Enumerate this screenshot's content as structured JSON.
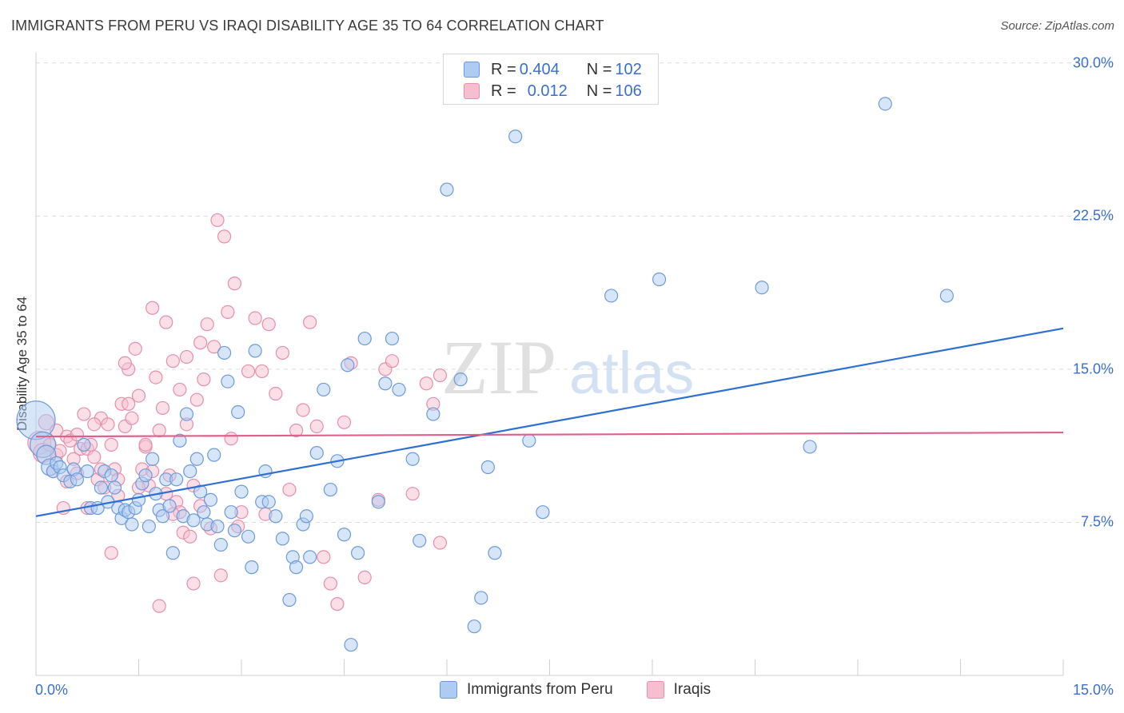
{
  "title": "IMMIGRANTS FROM PERU VS IRAQI DISABILITY AGE 35 TO 64 CORRELATION CHART",
  "source": "Source: ZipAtlas.com",
  "watermark": {
    "zip": "ZIP",
    "atlas": "atlas"
  },
  "colors": {
    "blue_fill": "#aecbf2",
    "blue_stroke": "#6f9ad9",
    "blue_line": "#2f6fd1",
    "pink_fill": "#f5bfd0",
    "pink_stroke": "#e58fac",
    "pink_line": "#e0608b",
    "grid": "#dcdcdc",
    "axis_label": "#3a6fcf"
  },
  "legend": {
    "rows": [
      {
        "r_label": "R = ",
        "r_value": "0.404",
        "n_label": "N = ",
        "n_value": "102"
      },
      {
        "r_label": "R = ",
        "r_value": "0.012",
        "n_label": "N = ",
        "n_value": "106"
      }
    ]
  },
  "bottom_legend": [
    "Immigrants from Peru",
    "Iraqis"
  ],
  "chart_data": {
    "type": "scatter",
    "title": "IMMIGRANTS FROM PERU VS IRAQI DISABILITY AGE 35 TO 64 CORRELATION CHART",
    "ylabel": "Disability Age 35 to 64",
    "xlabel": "",
    "xlim": [
      0,
      15
    ],
    "ylim": [
      0,
      30.5
    ],
    "x_tick_labels": [
      "0.0%",
      "15.0%"
    ],
    "y_ticks": [
      7.5,
      15.0,
      22.5,
      30.0
    ],
    "y_tick_labels": [
      "7.5%",
      "15.0%",
      "22.5%",
      "30.0%"
    ],
    "grid": true,
    "legend_position": "top-center",
    "series": [
      {
        "name": "Immigrants from Peru",
        "color": "#aecbf2",
        "trend": {
          "x": [
            0,
            15
          ],
          "y": [
            7.8,
            17.0
          ]
        },
        "points": [
          [
            0.0,
            12.5,
            3
          ],
          [
            0.1,
            11.3,
            2
          ],
          [
            0.15,
            10.8,
            1.5
          ],
          [
            0.2,
            10.2,
            1.3
          ],
          [
            0.25,
            10.0,
            1
          ],
          [
            0.3,
            10.4,
            1
          ],
          [
            0.35,
            10.2,
            1
          ],
          [
            0.4,
            9.8,
            1
          ],
          [
            0.5,
            9.5,
            1
          ],
          [
            0.55,
            10.1,
            1
          ],
          [
            0.6,
            9.6,
            1
          ],
          [
            0.7,
            11.3,
            1
          ],
          [
            0.75,
            10.0,
            1
          ],
          [
            0.8,
            8.2,
            1
          ],
          [
            0.9,
            8.2,
            1
          ],
          [
            0.95,
            9.2,
            1
          ],
          [
            1.0,
            10.0,
            1
          ],
          [
            1.05,
            8.5,
            1
          ],
          [
            1.1,
            9.8,
            1
          ],
          [
            1.15,
            9.2,
            1
          ],
          [
            1.2,
            8.2,
            1
          ],
          [
            1.25,
            7.7,
            1
          ],
          [
            1.3,
            8.1,
            1
          ],
          [
            1.35,
            8.0,
            1
          ],
          [
            1.4,
            7.4,
            1
          ],
          [
            1.45,
            8.2,
            1
          ],
          [
            1.5,
            8.6,
            1
          ],
          [
            1.55,
            9.4,
            1
          ],
          [
            1.6,
            9.8,
            1
          ],
          [
            1.65,
            7.3,
            1
          ],
          [
            1.7,
            10.6,
            1
          ],
          [
            1.75,
            8.9,
            1
          ],
          [
            1.8,
            8.1,
            1
          ],
          [
            1.85,
            7.8,
            1
          ],
          [
            1.9,
            9.6,
            1
          ],
          [
            1.95,
            8.3,
            1
          ],
          [
            2.0,
            6.0,
            1
          ],
          [
            2.05,
            9.6,
            1
          ],
          [
            2.1,
            11.5,
            1
          ],
          [
            2.15,
            7.8,
            1
          ],
          [
            2.2,
            12.8,
            1
          ],
          [
            2.25,
            10.0,
            1
          ],
          [
            2.3,
            7.6,
            1
          ],
          [
            2.35,
            10.6,
            1
          ],
          [
            2.4,
            9.0,
            1
          ],
          [
            2.45,
            8.0,
            1
          ],
          [
            2.5,
            7.4,
            1
          ],
          [
            2.55,
            8.6,
            1
          ],
          [
            2.6,
            10.8,
            1
          ],
          [
            2.65,
            7.3,
            1
          ],
          [
            2.7,
            6.4,
            1
          ],
          [
            2.75,
            15.8,
            1
          ],
          [
            2.8,
            14.4,
            1
          ],
          [
            2.85,
            8.0,
            1
          ],
          [
            2.9,
            7.1,
            1
          ],
          [
            2.95,
            12.9,
            1
          ],
          [
            3.0,
            9.0,
            1
          ],
          [
            3.1,
            6.8,
            1
          ],
          [
            3.15,
            5.3,
            1
          ],
          [
            3.2,
            15.9,
            1
          ],
          [
            3.3,
            8.5,
            1
          ],
          [
            3.35,
            10.0,
            1
          ],
          [
            3.4,
            8.5,
            1
          ],
          [
            3.5,
            7.8,
            1
          ],
          [
            3.6,
            6.7,
            1
          ],
          [
            3.7,
            3.7,
            1
          ],
          [
            3.75,
            5.8,
            1
          ],
          [
            3.8,
            5.3,
            1
          ],
          [
            3.9,
            7.4,
            1
          ],
          [
            3.95,
            7.8,
            1
          ],
          [
            4.0,
            5.8,
            1
          ],
          [
            4.1,
            10.9,
            1
          ],
          [
            4.2,
            14.0,
            1
          ],
          [
            4.3,
            9.1,
            1
          ],
          [
            4.4,
            10.5,
            1
          ],
          [
            4.5,
            6.9,
            1
          ],
          [
            4.55,
            15.2,
            1
          ],
          [
            4.6,
            1.5,
            1
          ],
          [
            4.7,
            6.0,
            1
          ],
          [
            4.8,
            16.5,
            1
          ],
          [
            5.0,
            8.5,
            1
          ],
          [
            5.1,
            14.3,
            1
          ],
          [
            5.2,
            16.5,
            1
          ],
          [
            5.3,
            14.0,
            1
          ],
          [
            5.5,
            10.6,
            1
          ],
          [
            5.6,
            6.6,
            1
          ],
          [
            5.8,
            12.8,
            1
          ],
          [
            6.0,
            23.8,
            1
          ],
          [
            6.2,
            14.5,
            1
          ],
          [
            6.4,
            2.4,
            1
          ],
          [
            6.5,
            3.8,
            1
          ],
          [
            6.6,
            10.2,
            1
          ],
          [
            6.7,
            6.0,
            1
          ],
          [
            7.0,
            26.4,
            1
          ],
          [
            7.2,
            11.5,
            1
          ],
          [
            7.4,
            8.0,
            1
          ],
          [
            8.4,
            18.6,
            1
          ],
          [
            9.1,
            19.4,
            1
          ],
          [
            10.6,
            19.0,
            1
          ],
          [
            11.3,
            11.2,
            1
          ],
          [
            12.4,
            28.0,
            1
          ],
          [
            13.3,
            18.6,
            1
          ]
        ]
      },
      {
        "name": "Iraqis",
        "color": "#f5bfd0",
        "trend": {
          "x": [
            0,
            15
          ],
          "y": [
            11.7,
            11.9
          ]
        },
        "points": [
          [
            0.05,
            11.4,
            1.8
          ],
          [
            0.1,
            10.9,
            1.5
          ],
          [
            0.15,
            12.4,
            1.2
          ],
          [
            0.2,
            11.3,
            1
          ],
          [
            0.25,
            10.0,
            1
          ],
          [
            0.3,
            10.8,
            1
          ],
          [
            0.35,
            11.0,
            1
          ],
          [
            0.4,
            8.2,
            1
          ],
          [
            0.45,
            11.7,
            1
          ],
          [
            0.5,
            11.5,
            1
          ],
          [
            0.55,
            10.6,
            1
          ],
          [
            0.6,
            9.9,
            1
          ],
          [
            0.65,
            11.1,
            1
          ],
          [
            0.7,
            12.8,
            1
          ],
          [
            0.75,
            11.1,
            1
          ],
          [
            0.8,
            11.3,
            1
          ],
          [
            0.85,
            10.7,
            1
          ],
          [
            0.9,
            9.6,
            1
          ],
          [
            0.95,
            12.6,
            1
          ],
          [
            1.0,
            9.2,
            1
          ],
          [
            1.05,
            12.3,
            1
          ],
          [
            1.1,
            11.3,
            1
          ],
          [
            1.15,
            10.1,
            1
          ],
          [
            1.2,
            9.6,
            1
          ],
          [
            1.25,
            13.3,
            1
          ],
          [
            1.3,
            12.2,
            1
          ],
          [
            1.35,
            15.0,
            1
          ],
          [
            1.4,
            12.6,
            1
          ],
          [
            1.45,
            16.0,
            1
          ],
          [
            1.5,
            13.7,
            1
          ],
          [
            1.55,
            10.1,
            1
          ],
          [
            1.6,
            11.2,
            1
          ],
          [
            1.65,
            9.3,
            1
          ],
          [
            1.7,
            18.0,
            1
          ],
          [
            1.75,
            14.6,
            1
          ],
          [
            1.8,
            3.4,
            1
          ],
          [
            1.85,
            13.1,
            1
          ],
          [
            1.9,
            17.3,
            1
          ],
          [
            1.95,
            9.8,
            1
          ],
          [
            2.0,
            15.4,
            1
          ],
          [
            2.05,
            8.5,
            1
          ],
          [
            2.1,
            8.0,
            1
          ],
          [
            2.15,
            7.0,
            1
          ],
          [
            2.2,
            15.6,
            1
          ],
          [
            2.25,
            6.8,
            1
          ],
          [
            2.3,
            4.5,
            1
          ],
          [
            2.35,
            13.5,
            1
          ],
          [
            2.4,
            8.3,
            1
          ],
          [
            2.45,
            14.5,
            1
          ],
          [
            2.5,
            17.2,
            1
          ],
          [
            2.55,
            7.2,
            1
          ],
          [
            2.6,
            16.1,
            1
          ],
          [
            2.65,
            22.3,
            1
          ],
          [
            2.7,
            4.9,
            1
          ],
          [
            2.75,
            21.5,
            1
          ],
          [
            2.8,
            17.8,
            1
          ],
          [
            2.85,
            11.6,
            1
          ],
          [
            2.9,
            19.2,
            1
          ],
          [
            2.95,
            7.3,
            1
          ],
          [
            3.0,
            8.0,
            1
          ],
          [
            3.1,
            14.9,
            1
          ],
          [
            3.2,
            17.5,
            1
          ],
          [
            3.3,
            14.9,
            1
          ],
          [
            3.35,
            7.9,
            1
          ],
          [
            3.4,
            17.2,
            1
          ],
          [
            3.5,
            13.8,
            1
          ],
          [
            3.6,
            15.8,
            1
          ],
          [
            3.7,
            9.1,
            1
          ],
          [
            3.8,
            12.0,
            1
          ],
          [
            3.9,
            13.0,
            1
          ],
          [
            4.0,
            17.3,
            1
          ],
          [
            4.1,
            12.2,
            1
          ],
          [
            4.2,
            5.8,
            1
          ],
          [
            4.3,
            4.5,
            1
          ],
          [
            4.4,
            3.5,
            1
          ],
          [
            4.5,
            12.4,
            1
          ],
          [
            4.6,
            15.3,
            1
          ],
          [
            4.8,
            4.8,
            1
          ],
          [
            5.0,
            8.6,
            1
          ],
          [
            5.1,
            15.0,
            1
          ],
          [
            5.2,
            15.4,
            1
          ],
          [
            5.5,
            8.9,
            1
          ],
          [
            5.7,
            14.3,
            1
          ],
          [
            5.8,
            13.3,
            1
          ],
          [
            5.9,
            14.7,
            1
          ],
          [
            5.9,
            6.5,
            1
          ],
          [
            0.3,
            12.0,
            1
          ],
          [
            0.45,
            9.5,
            1
          ],
          [
            0.6,
            11.8,
            1
          ],
          [
            0.75,
            8.2,
            1
          ],
          [
            0.85,
            12.3,
            1
          ],
          [
            0.95,
            10.1,
            1
          ],
          [
            1.1,
            6.0,
            1
          ],
          [
            1.2,
            8.8,
            1
          ],
          [
            1.3,
            15.3,
            1
          ],
          [
            1.35,
            13.3,
            1
          ],
          [
            1.5,
            9.2,
            1
          ],
          [
            1.6,
            11.3,
            1
          ],
          [
            1.7,
            10.0,
            1
          ],
          [
            1.8,
            12.0,
            1
          ],
          [
            1.9,
            8.9,
            1
          ],
          [
            2.0,
            7.9,
            1
          ],
          [
            2.1,
            14.0,
            1
          ],
          [
            2.2,
            12.3,
            1
          ],
          [
            2.3,
            9.3,
            1
          ],
          [
            2.4,
            16.3,
            1
          ]
        ]
      }
    ]
  }
}
